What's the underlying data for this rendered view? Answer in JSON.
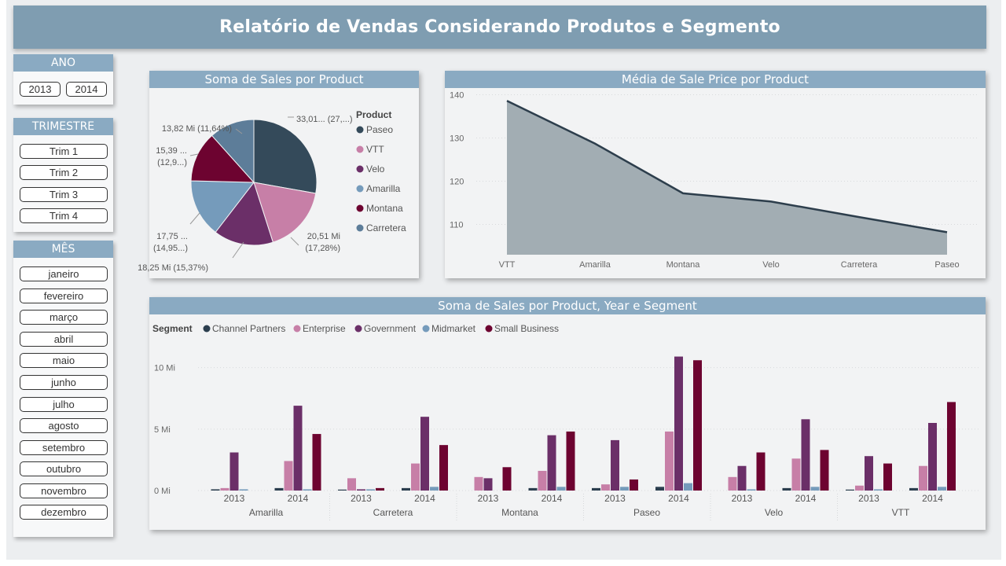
{
  "header": {
    "title": "Relatório de Vendas Considerando Produtos e Segmento"
  },
  "slicers": {
    "ano": {
      "title": "ANO",
      "options": [
        "2013",
        "2014"
      ]
    },
    "trimestre": {
      "title": "TRIMESTRE",
      "options": [
        "Trim 1",
        "Trim 2",
        "Trim 3",
        "Trim 4"
      ]
    },
    "mes": {
      "title": "MÊS",
      "options": [
        "janeiro",
        "fevereiro",
        "março",
        "abril",
        "maio",
        "junho",
        "julho",
        "agosto",
        "setembro",
        "outubro",
        "novembro",
        "dezembro"
      ]
    }
  },
  "colors": {
    "Paseo": "#344a5a",
    "VTT": "#c77fa7",
    "Velo": "#6b2f68",
    "Amarilla": "#759bbb",
    "Montana": "#6d0330",
    "Carretera": "#5d7d99",
    "Channel Partners": "#2b3e4e",
    "Enterprise": "#c77fa7",
    "Government": "#6b2f68",
    "Midmarket": "#759bbb",
    "Small Business": "#6d0330",
    "area_fill": "#a2adb3",
    "area_line": "#2d3e4c"
  },
  "chart_data": [
    {
      "type": "pie",
      "title": "Soma de Sales por Product",
      "legend_title": "Product",
      "legend_position": "right",
      "slices": [
        {
          "name": "Paseo",
          "value": 33.01,
          "label_value": "33,01... (27,...)"
        },
        {
          "name": "VTT",
          "value": 20.51,
          "label_value": "20,51 Mi",
          "label_pct": "(17,28%)"
        },
        {
          "name": "Velo",
          "value": 18.25,
          "label_value": "18,25 Mi (15,37%)"
        },
        {
          "name": "Amarilla",
          "value": 17.75,
          "label_value": "17,75 ...",
          "label_pct": "(14,95...)"
        },
        {
          "name": "Montana",
          "value": 15.39,
          "label_value": "15,39 ...",
          "label_pct": "(12,9...)"
        },
        {
          "name": "Carretera",
          "value": 13.82,
          "label_value": "13,82 Mi (11,64%)"
        }
      ]
    },
    {
      "type": "area",
      "title": "Média de Sale Price por Product",
      "categories": [
        "VTT",
        "Amarilla",
        "Montana",
        "Velo",
        "Carretera",
        "Paseo"
      ],
      "values": [
        138.6,
        128.7,
        117.2,
        115.3,
        111.7,
        108.2
      ],
      "ylim": [
        103,
        141
      ],
      "yticks": [
        110,
        120,
        130,
        140
      ],
      "grid": true
    },
    {
      "type": "bar",
      "title": "Soma de Sales por Product, Year e Segment",
      "legend_title": "Segment",
      "legend_position": "top-left",
      "groups": [
        "Amarilla",
        "Carretera",
        "Montana",
        "Paseo",
        "Velo",
        "VTT"
      ],
      "years": [
        "2013",
        "2014"
      ],
      "segments": [
        "Channel Partners",
        "Enterprise",
        "Government",
        "Midmarket",
        "Small Business"
      ],
      "unit": "Mi",
      "ylim": [
        0,
        11
      ],
      "yticks": [
        {
          "value": 0,
          "label": "0 Mi"
        },
        {
          "value": 5,
          "label": "5 Mi"
        },
        {
          "value": 10,
          "label": "10 Mi"
        }
      ],
      "values": {
        "Amarilla": {
          "2013": [
            0.1,
            0.2,
            3.1,
            0.1,
            0.0
          ],
          "2014": [
            0.2,
            2.4,
            6.9,
            0.1,
            4.6
          ]
        },
        "Carretera": {
          "2013": [
            0.05,
            1.0,
            0.1,
            0.1,
            0.2
          ],
          "2014": [
            0.2,
            2.2,
            6.0,
            0.3,
            3.7
          ]
        },
        "Montana": {
          "2013": [
            0.0,
            1.1,
            1.0,
            0.0,
            1.9
          ],
          "2014": [
            0.2,
            1.6,
            4.5,
            0.3,
            4.8
          ]
        },
        "Paseo": {
          "2013": [
            0.2,
            0.5,
            4.1,
            0.3,
            0.9
          ],
          "2014": [
            0.3,
            4.8,
            10.9,
            0.6,
            10.6
          ]
        },
        "Velo": {
          "2013": [
            0.0,
            1.1,
            2.0,
            0.1,
            3.1
          ],
          "2014": [
            0.2,
            2.6,
            5.8,
            0.3,
            3.3
          ]
        },
        "VTT": {
          "2013": [
            0.05,
            0.4,
            2.8,
            0.1,
            2.2
          ],
          "2014": [
            0.2,
            2.0,
            5.5,
            0.3,
            7.2
          ]
        }
      }
    }
  ]
}
